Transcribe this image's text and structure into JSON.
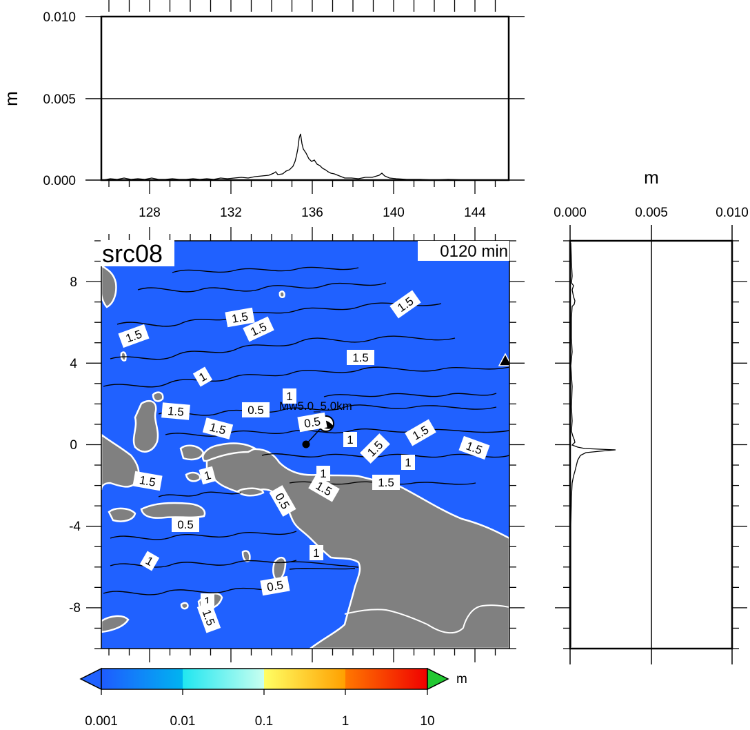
{
  "map": {
    "title": "src08",
    "time_label": "0120 min",
    "event_label": "Mw5.0_5.0km",
    "x_ticks": [
      "128",
      "132",
      "136",
      "140",
      "144"
    ],
    "y_ticks": [
      "8",
      "4",
      "0",
      "-4",
      "-8"
    ],
    "ocean_color": "#2061ff",
    "land_color": "#808080",
    "contour_labels": [
      {
        "text": "1.5",
        "rotate": -20
      },
      {
        "text": "1.5",
        "rotate": -10
      },
      {
        "text": "1.5",
        "rotate": -25
      },
      {
        "text": "1.5",
        "rotate": -35
      },
      {
        "text": "1.5",
        "rotate": 0
      },
      {
        "text": "1",
        "rotate": -30
      },
      {
        "text": "1",
        "rotate": 0
      },
      {
        "text": "1.5",
        "rotate": 5
      },
      {
        "text": "1.5",
        "rotate": 15
      },
      {
        "text": "0.5",
        "rotate": 0
      },
      {
        "text": "0.5",
        "rotate": -10
      },
      {
        "text": "1",
        "rotate": 0
      },
      {
        "text": "1.5",
        "rotate": -45
      },
      {
        "text": "1.5",
        "rotate": -30
      },
      {
        "text": "1.5",
        "rotate": 20
      },
      {
        "text": "1",
        "rotate": 0
      },
      {
        "text": "1",
        "rotate": -15
      },
      {
        "text": "1.5",
        "rotate": 10
      },
      {
        "text": "1.5",
        "rotate": 0
      },
      {
        "text": "1.5",
        "rotate": 30
      },
      {
        "text": "0.5",
        "rotate": 60
      },
      {
        "text": "1",
        "rotate": 0
      },
      {
        "text": "0.5",
        "rotate": 0
      },
      {
        "text": "1",
        "rotate": 30
      },
      {
        "text": "1",
        "rotate": 0
      },
      {
        "text": "0.5",
        "rotate": -10
      },
      {
        "text": "1",
        "rotate": 0
      },
      {
        "text": "1.5",
        "rotate": 70
      }
    ]
  },
  "top_profile": {
    "ylabel": "m",
    "y_ticks": [
      "0.010",
      "0.005",
      "0.000"
    ],
    "peak_lon": 135.5,
    "peak_value": 0.0028
  },
  "right_profile": {
    "xlabel": "m",
    "x_ticks": [
      "0.000",
      "0.005",
      "0.010"
    ],
    "peak_lat": -0.2,
    "peak_value": 0.0028
  },
  "colorbar": {
    "unit": "m",
    "tick_labels": [
      "0.001",
      "0.01",
      "0.1",
      "1",
      "10"
    ],
    "colors": {
      "under": "#2061ff",
      "over": "#22c832"
    }
  }
}
